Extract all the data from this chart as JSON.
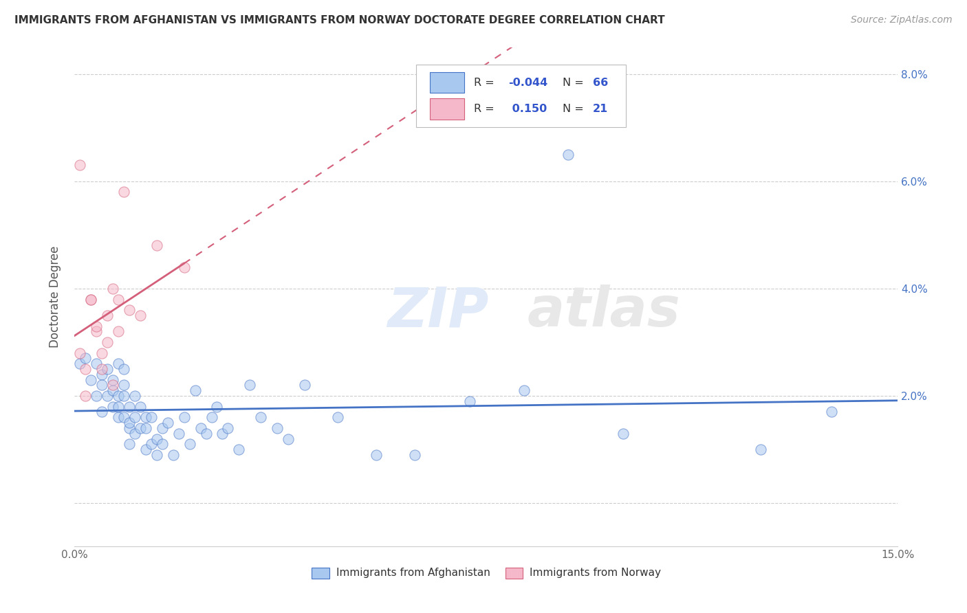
{
  "title": "IMMIGRANTS FROM AFGHANISTAN VS IMMIGRANTS FROM NORWAY DOCTORATE DEGREE CORRELATION CHART",
  "source_text": "Source: ZipAtlas.com",
  "ylabel": "Doctorate Degree",
  "x_min": 0.0,
  "x_max": 0.15,
  "y_min": -0.008,
  "y_max": 0.085,
  "color_afghanistan": "#a8c8f0",
  "color_norway": "#f5b8ca",
  "line_color_afghanistan": "#4472c4",
  "line_color_norway": "#d45f7a",
  "r_afghanistan": -0.044,
  "n_afghanistan": 66,
  "r_norway": 0.15,
  "n_norway": 21,
  "legend_label_afghanistan": "Immigrants from Afghanistan",
  "legend_label_norway": "Immigrants from Norway",
  "watermark_zip": "ZIP",
  "watermark_atlas": "atlas",
  "afghanistan_points": [
    [
      0.001,
      0.026
    ],
    [
      0.002,
      0.027
    ],
    [
      0.003,
      0.023
    ],
    [
      0.004,
      0.026
    ],
    [
      0.004,
      0.02
    ],
    [
      0.005,
      0.024
    ],
    [
      0.005,
      0.017
    ],
    [
      0.005,
      0.022
    ],
    [
      0.006,
      0.025
    ],
    [
      0.006,
      0.02
    ],
    [
      0.007,
      0.021
    ],
    [
      0.007,
      0.018
    ],
    [
      0.007,
      0.023
    ],
    [
      0.008,
      0.016
    ],
    [
      0.008,
      0.02
    ],
    [
      0.008,
      0.018
    ],
    [
      0.008,
      0.026
    ],
    [
      0.009,
      0.025
    ],
    [
      0.009,
      0.02
    ],
    [
      0.009,
      0.016
    ],
    [
      0.009,
      0.022
    ],
    [
      0.01,
      0.014
    ],
    [
      0.01,
      0.018
    ],
    [
      0.01,
      0.015
    ],
    [
      0.01,
      0.011
    ],
    [
      0.011,
      0.02
    ],
    [
      0.011,
      0.016
    ],
    [
      0.011,
      0.013
    ],
    [
      0.012,
      0.018
    ],
    [
      0.012,
      0.014
    ],
    [
      0.013,
      0.016
    ],
    [
      0.013,
      0.01
    ],
    [
      0.013,
      0.014
    ],
    [
      0.014,
      0.011
    ],
    [
      0.014,
      0.016
    ],
    [
      0.015,
      0.012
    ],
    [
      0.015,
      0.009
    ],
    [
      0.016,
      0.014
    ],
    [
      0.016,
      0.011
    ],
    [
      0.017,
      0.015
    ],
    [
      0.018,
      0.009
    ],
    [
      0.019,
      0.013
    ],
    [
      0.02,
      0.016
    ],
    [
      0.021,
      0.011
    ],
    [
      0.022,
      0.021
    ],
    [
      0.023,
      0.014
    ],
    [
      0.024,
      0.013
    ],
    [
      0.025,
      0.016
    ],
    [
      0.026,
      0.018
    ],
    [
      0.027,
      0.013
    ],
    [
      0.028,
      0.014
    ],
    [
      0.03,
      0.01
    ],
    [
      0.032,
      0.022
    ],
    [
      0.034,
      0.016
    ],
    [
      0.037,
      0.014
    ],
    [
      0.039,
      0.012
    ],
    [
      0.042,
      0.022
    ],
    [
      0.048,
      0.016
    ],
    [
      0.055,
      0.009
    ],
    [
      0.062,
      0.009
    ],
    [
      0.072,
      0.019
    ],
    [
      0.082,
      0.021
    ],
    [
      0.09,
      0.065
    ],
    [
      0.1,
      0.013
    ],
    [
      0.125,
      0.01
    ],
    [
      0.138,
      0.017
    ]
  ],
  "norway_points": [
    [
      0.001,
      0.028
    ],
    [
      0.002,
      0.025
    ],
    [
      0.002,
      0.02
    ],
    [
      0.003,
      0.038
    ],
    [
      0.003,
      0.038
    ],
    [
      0.004,
      0.032
    ],
    [
      0.004,
      0.033
    ],
    [
      0.005,
      0.028
    ],
    [
      0.005,
      0.025
    ],
    [
      0.006,
      0.03
    ],
    [
      0.006,
      0.035
    ],
    [
      0.007,
      0.022
    ],
    [
      0.007,
      0.04
    ],
    [
      0.008,
      0.032
    ],
    [
      0.008,
      0.038
    ],
    [
      0.009,
      0.058
    ],
    [
      0.01,
      0.036
    ],
    [
      0.012,
      0.035
    ],
    [
      0.015,
      0.048
    ],
    [
      0.02,
      0.044
    ],
    [
      0.001,
      0.063
    ]
  ],
  "figsize": [
    14.06,
    8.92
  ],
  "dpi": 100
}
